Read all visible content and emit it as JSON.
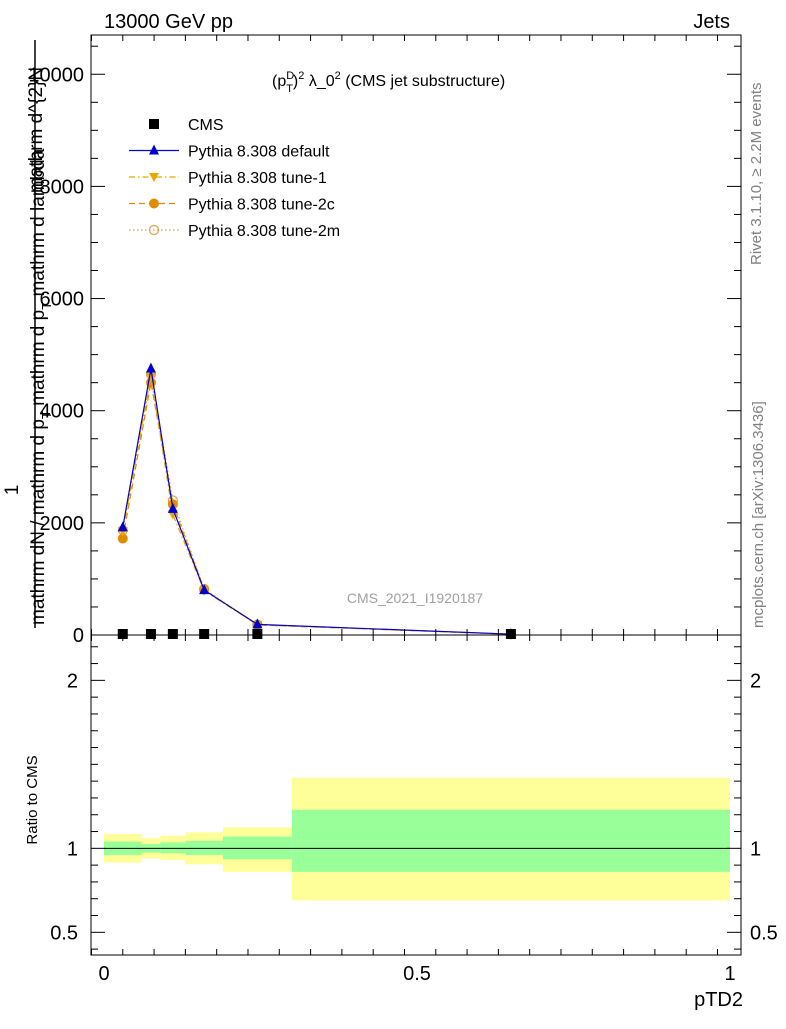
{
  "header": {
    "left": "13000 GeV pp",
    "right": "Jets"
  },
  "side_text": {
    "rivet": "Rivet 3.1.10, ≥ 2.2M events",
    "mcplots": "mcplots.cern.ch [arXiv:1306.3436]"
  },
  "watermark": "CMS_2021_I1920187",
  "chart_data": [
    {
      "type": "line",
      "title": "(p_T^D)^2 λ_0^2 (CMS jet substructure)",
      "title_parts": {
        "a": "(p",
        "sup1": "D",
        "sub1": "T",
        "b": ")",
        "sup2": "2",
        "c": " λ_0",
        "sup3": "2",
        "d": " (CMS jet substructure)"
      },
      "ylabel_lines": [
        "mathrm dN / mathrm d p_T mathrm d p_T mathrm d lambda",
        "1",
        "mathrm d^2N"
      ],
      "ylabel_parts": {
        "l1": "mathrm d^{2}N",
        "l2": "1",
        "l3": "mathrm dN / mathrm d p",
        "l3sub": "T",
        "l3b": " mathrm d p",
        "l3sub2": "T",
        "l3c": " mathrm d lambda"
      },
      "xlim": [
        0,
        1
      ],
      "ylim": [
        0,
        10700
      ],
      "yticks": [
        0,
        2000,
        4000,
        6000,
        8000,
        10000
      ],
      "ytick_labels": [
        "0",
        "2000",
        "4000",
        "6000",
        "8000",
        "10000"
      ],
      "legend": {
        "position": "top-left",
        "entries": [
          {
            "label": "CMS",
            "marker": "square",
            "color": "#000000",
            "dash": "none"
          },
          {
            "label": "Pythia 8.308 default",
            "marker": "triangle-up",
            "color": "#0000cc",
            "dash": "solid"
          },
          {
            "label": "Pythia 8.308 tune-1",
            "marker": "triangle-down",
            "color": "#e8a800",
            "dash": "dashdot"
          },
          {
            "label": "Pythia 8.308 tune-2c",
            "marker": "circle",
            "color": "#e08c00",
            "dash": "dashed"
          },
          {
            "label": "Pythia 8.308 tune-2m",
            "marker": "circle-open",
            "color": "#e8a040",
            "dash": "dotted"
          }
        ]
      },
      "cms": {
        "x": [
          0.03,
          0.075,
          0.11,
          0.16,
          0.245,
          0.65
        ],
        "y": [
          0,
          0,
          0,
          0,
          0,
          0
        ]
      },
      "series": [
        {
          "name": "Pythia 8.308 default",
          "x": [
            0.03,
            0.075,
            0.11,
            0.16,
            0.245,
            0.65
          ],
          "y": [
            1920,
            4750,
            2250,
            800,
            190,
            15
          ],
          "err": [
            60,
            90,
            60,
            35,
            15,
            5
          ]
        },
        {
          "name": "Pythia 8.308 tune-1",
          "x": [
            0.03,
            0.075,
            0.11,
            0.16,
            0.245,
            0.65
          ],
          "y": [
            1850,
            4600,
            2150,
            790,
            180,
            14
          ],
          "err": [
            0,
            0,
            0,
            0,
            0,
            0
          ]
        },
        {
          "name": "Pythia 8.308 tune-2c",
          "x": [
            0.03,
            0.075,
            0.11,
            0.16,
            0.245,
            0.65
          ],
          "y": [
            1720,
            4500,
            2330,
            810,
            180,
            14
          ],
          "err": [
            0,
            0,
            0,
            0,
            0,
            0
          ]
        },
        {
          "name": "Pythia 8.308 tune-2m",
          "x": [
            0.03,
            0.075,
            0.11,
            0.16,
            0.245,
            0.65
          ],
          "y": [
            1870,
            4650,
            2400,
            820,
            185,
            15
          ],
          "err": [
            0,
            0,
            0,
            0,
            0,
            0
          ]
        }
      ]
    },
    {
      "type": "area",
      "ylabel": "Ratio to CMS",
      "xlabel": "pTD2",
      "xlim": [
        0,
        1
      ],
      "ylim": [
        0.365,
        2.27
      ],
      "xticks": [
        0,
        0.5,
        1
      ],
      "xtick_labels": [
        "0",
        "0.5",
        "1"
      ],
      "yticks": [
        0.5,
        1,
        2
      ],
      "ytick_labels": [
        "0.5",
        "1",
        "2"
      ],
      "bins": [
        {
          "lo": 0.0,
          "hi": 0.06,
          "stat": [
            0.96,
            1.04
          ],
          "total": [
            0.915,
            1.085
          ]
        },
        {
          "lo": 0.06,
          "hi": 0.09,
          "stat": [
            0.975,
            1.025
          ],
          "total": [
            0.94,
            1.06
          ]
        },
        {
          "lo": 0.09,
          "hi": 0.13,
          "stat": [
            0.97,
            1.035
          ],
          "total": [
            0.93,
            1.075
          ]
        },
        {
          "lo": 0.13,
          "hi": 0.19,
          "stat": [
            0.96,
            1.045
          ],
          "total": [
            0.905,
            1.095
          ]
        },
        {
          "lo": 0.19,
          "hi": 0.3,
          "stat": [
            0.935,
            1.07
          ],
          "total": [
            0.86,
            1.125
          ]
        },
        {
          "lo": 0.3,
          "hi": 1.0,
          "stat": [
            0.86,
            1.23
          ],
          "total": [
            0.69,
            1.42
          ]
        }
      ],
      "reference": 1.0,
      "colors": {
        "stat": "#99ff99",
        "total": "#ffff99"
      }
    }
  ]
}
